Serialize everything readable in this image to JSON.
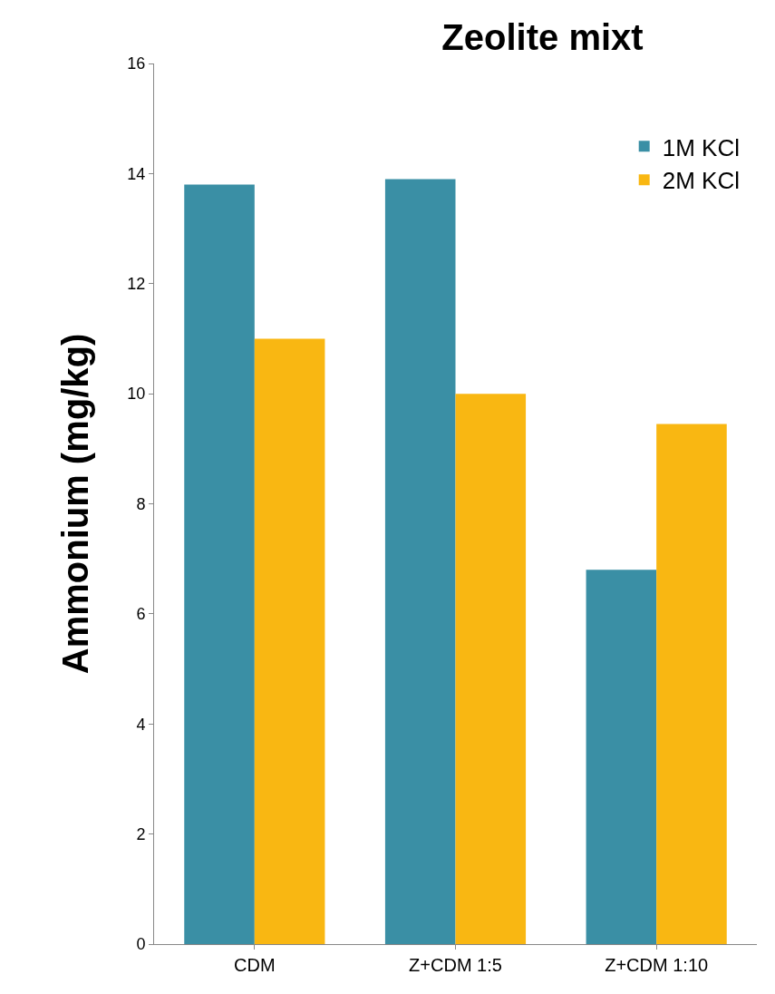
{
  "chart_data": {
    "type": "bar",
    "title": "Zeolite mixt",
    "ylabel": "Ammonium (mg/kg)",
    "categories": [
      "CDM",
      "Z+CDM 1:5",
      "Z+CDM 1:10"
    ],
    "series": [
      {
        "name": "1M KCl",
        "color": "#3a8fa5",
        "values": [
          13.8,
          13.9,
          6.8
        ]
      },
      {
        "name": "2M KCl",
        "color": "#f9b712",
        "values": [
          11.0,
          10.0,
          9.45
        ]
      }
    ],
    "ylim": [
      0,
      16
    ],
    "yticks": [
      0,
      2,
      4,
      6,
      8,
      10,
      12,
      14,
      16
    ],
    "grid": false,
    "legend": "top right"
  }
}
